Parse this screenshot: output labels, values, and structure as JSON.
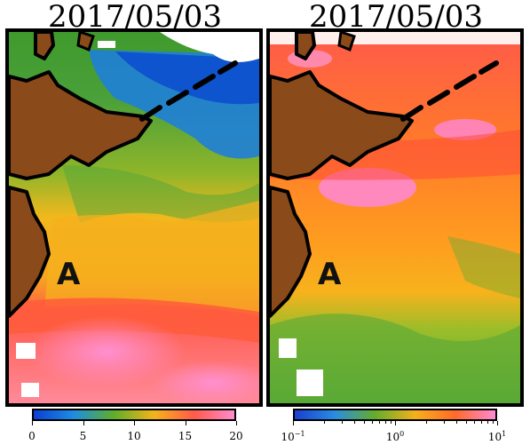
{
  "panels": [
    {
      "date": "2017/05/03",
      "marker": "A",
      "colorbar": {
        "ticks": [
          {
            "label": "0",
            "value": 0
          },
          {
            "label": "5",
            "value": 5
          },
          {
            "label": "10",
            "value": 10
          },
          {
            "label": "15",
            "value": 15
          },
          {
            "label": "20",
            "value": 20
          }
        ],
        "range": [
          0,
          20
        ],
        "scale": "linear",
        "colors": [
          "#0b3fd6",
          "#1e8de0",
          "#5fae2b",
          "#f4b31c",
          "#ff5a4a",
          "#ff8ccf"
        ]
      }
    },
    {
      "date": "2017/05/03",
      "marker": "A",
      "colorbar": {
        "ticks": [
          {
            "base": "10",
            "exp": "−1",
            "value": 0.1
          },
          {
            "base": "10",
            "exp": "0",
            "value": 1
          },
          {
            "base": "10",
            "exp": "1",
            "value": 10
          }
        ],
        "range": [
          0.1,
          10
        ],
        "scale": "log",
        "colors": [
          "#1a3fd0",
          "#2a8de0",
          "#63ad2c",
          "#f4b01c",
          "#ff6a2a",
          "#ff8ad5"
        ]
      }
    }
  ],
  "land_color": "#8b4a1a",
  "coast_color": "#000000"
}
